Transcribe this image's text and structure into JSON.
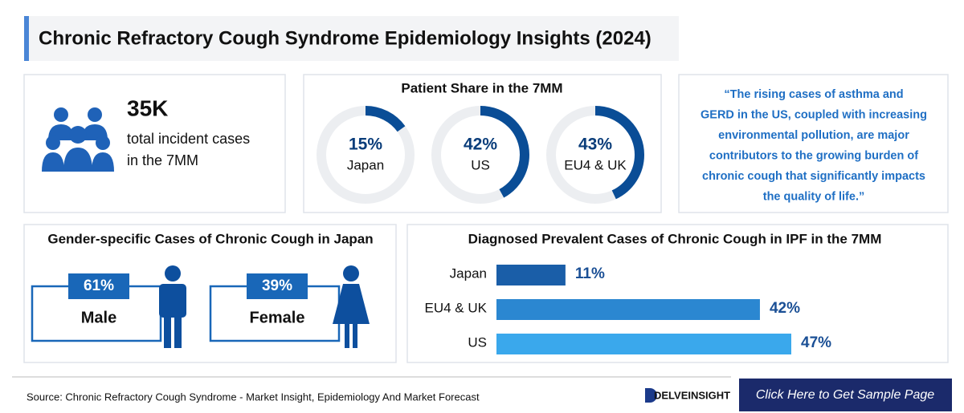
{
  "header": {
    "title": "Chronic Refractory Cough Syndrome Epidemiology Insights (2024)"
  },
  "stat": {
    "value": "35K",
    "lines": [
      "total incident cases",
      "in the 7MM"
    ]
  },
  "chart_data": [
    {
      "type": "donut",
      "title": "Patient Share in the 7MM",
      "categories": [
        "Japan",
        "US",
        "EU4 & UK"
      ],
      "values": [
        15,
        42,
        43
      ],
      "value_labels": [
        "15%",
        "42%",
        "43%"
      ],
      "color": "#0a4d96",
      "track_color": "#eceef1"
    },
    {
      "type": "gender",
      "title": "Gender-specific Cases of Chronic Cough in Japan",
      "categories": [
        "Male",
        "Female"
      ],
      "values": [
        61,
        39
      ],
      "value_labels": [
        "61%",
        "39%"
      ],
      "color": "#1967b8"
    },
    {
      "type": "bar",
      "title": "Diagnosed Prevalent Cases of Chronic Cough in IPF in the 7MM",
      "categories": [
        "Japan",
        "EU4 & UK",
        "US"
      ],
      "values": [
        11,
        42,
        47
      ],
      "value_labels": [
        "11%",
        "42%",
        "47%"
      ],
      "colors": [
        "#1a5ea8",
        "#2b87d1",
        "#3aa8ec"
      ]
    }
  ],
  "quote": {
    "lines": [
      "“The rising cases of asthma and",
      "GERD in the US, coupled with increasing",
      "environmental pollution, are major",
      "contributors to the growing burden of",
      "chronic cough that significantly impacts",
      "the quality of life.”"
    ]
  },
  "footer": {
    "source": "Source: Chronic Refractory Cough Syndrome - Market Insight, Epidemiology And Market Forecast",
    "logo": "DELVEINSIGHT",
    "button": "Click Here to Get Sample Page"
  }
}
